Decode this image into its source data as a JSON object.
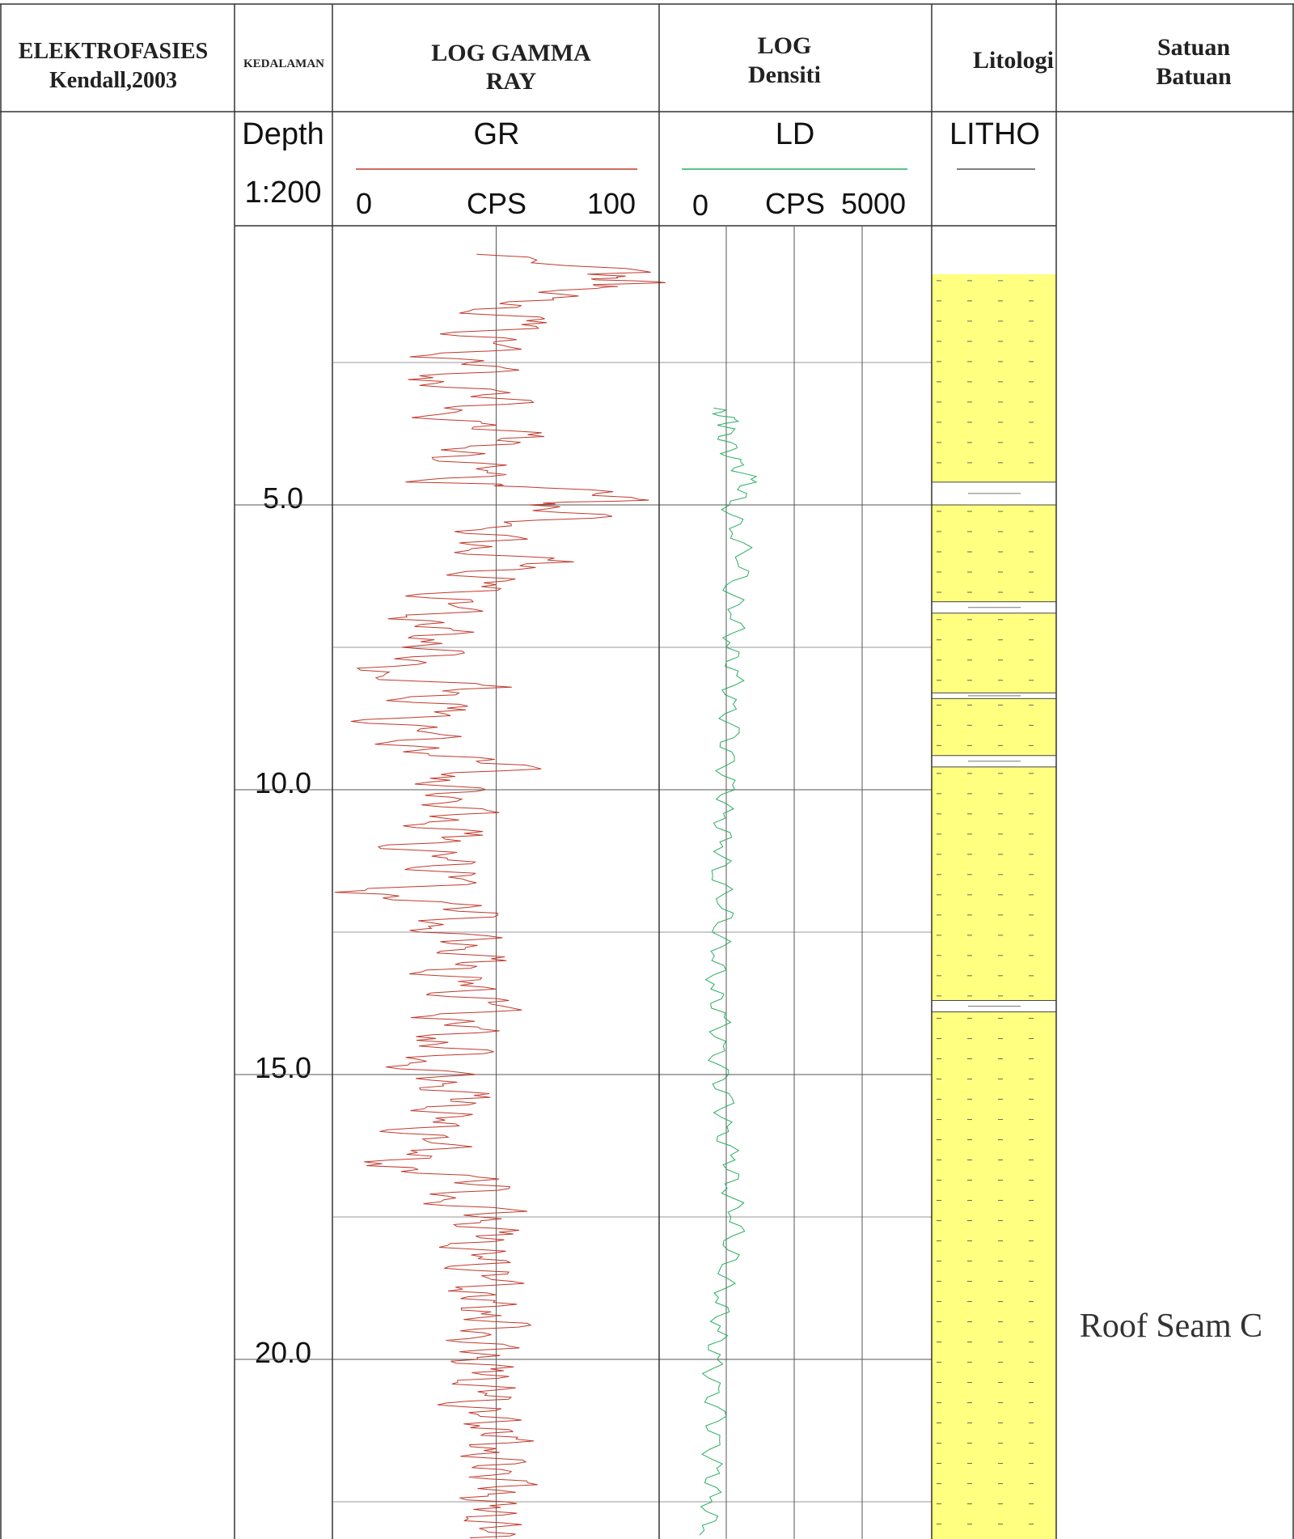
{
  "headers": {
    "electrofacies": [
      "ELEKTROFASIES",
      "Kendall,2003"
    ],
    "depth": "KEDALAMAN",
    "gamma": [
      "LOG GAMMA",
      "RAY"
    ],
    "density": [
      "LOG",
      "Densiti"
    ],
    "lithology": "Litologi",
    "unit": [
      "Satuan",
      "Batuan"
    ]
  },
  "subheaders": {
    "depth_label": "Depth",
    "depth_scale": "1:200",
    "gr_name": "GR",
    "gr_unit": "CPS",
    "gr_min": "0",
    "gr_max": "100",
    "ld_name": "LD",
    "ld_unit": "CPS",
    "ld_min": "0",
    "ld_max": "5000",
    "litho_name": "LITHO"
  },
  "unit_label": "Roof Seam C",
  "colors": {
    "gr_curve": "#c0392b",
    "ld_curve": "#27ae60",
    "sandstone_fill": "#ffff80",
    "grid": "#9a9a9a"
  },
  "chart_data": {
    "type": "line",
    "title": "",
    "ylabel": "Depth",
    "depth_range": [
      0.5,
      23.5
    ],
    "depth_ticks": [
      "5.0",
      "10.0",
      "15.0",
      "20.0"
    ],
    "depth_tick_values": [
      5,
      10,
      15,
      20
    ],
    "series": [
      {
        "name": "GR",
        "unit": "CPS",
        "xlim": [
          0,
          100
        ],
        "values": [
          [
            0.6,
            44
          ],
          [
            0.9,
            92
          ],
          [
            1.0,
            80
          ],
          [
            1.1,
            94
          ],
          [
            1.2,
            74
          ],
          [
            1.4,
            64
          ],
          [
            1.6,
            42
          ],
          [
            1.8,
            70
          ],
          [
            2.0,
            40
          ],
          [
            2.2,
            60
          ],
          [
            2.4,
            30
          ],
          [
            2.6,
            56
          ],
          [
            2.8,
            22
          ],
          [
            3.0,
            46
          ],
          [
            3.2,
            54
          ],
          [
            3.4,
            26
          ],
          [
            3.6,
            44
          ],
          [
            3.8,
            62
          ],
          [
            4.0,
            42
          ],
          [
            4.2,
            36
          ],
          [
            4.4,
            55
          ],
          [
            4.6,
            30
          ],
          [
            4.7,
            70
          ],
          [
            4.9,
            96
          ],
          [
            5.0,
            58
          ],
          [
            5.2,
            80
          ],
          [
            5.4,
            40
          ],
          [
            5.6,
            52
          ],
          [
            5.8,
            36
          ],
          [
            6.0,
            72
          ],
          [
            6.2,
            40
          ],
          [
            6.4,
            56
          ],
          [
            6.6,
            30
          ],
          [
            6.8,
            46
          ],
          [
            7.0,
            22
          ],
          [
            7.2,
            38
          ],
          [
            7.4,
            24
          ],
          [
            7.6,
            34
          ],
          [
            7.8,
            18
          ],
          [
            8.0,
            8
          ],
          [
            8.2,
            50
          ],
          [
            8.4,
            20
          ],
          [
            8.6,
            44
          ],
          [
            8.8,
            12
          ],
          [
            9.0,
            38
          ],
          [
            9.2,
            20
          ],
          [
            9.4,
            34
          ],
          [
            9.6,
            62
          ],
          [
            9.8,
            26
          ],
          [
            10.0,
            40
          ],
          [
            10.2,
            30
          ],
          [
            10.4,
            44
          ],
          [
            10.6,
            24
          ],
          [
            10.8,
            46
          ],
          [
            11.0,
            18
          ],
          [
            11.2,
            42
          ],
          [
            11.4,
            30
          ],
          [
            11.6,
            48
          ],
          [
            11.8,
            4
          ],
          [
            12.0,
            36
          ],
          [
            12.2,
            46
          ],
          [
            12.4,
            22
          ],
          [
            12.6,
            44
          ],
          [
            12.8,
            34
          ],
          [
            13.0,
            50
          ],
          [
            13.2,
            28
          ],
          [
            13.4,
            48
          ],
          [
            13.6,
            36
          ],
          [
            13.8,
            60
          ],
          [
            14.0,
            30
          ],
          [
            14.2,
            48
          ],
          [
            14.4,
            24
          ],
          [
            14.6,
            44
          ],
          [
            14.8,
            16
          ],
          [
            15.0,
            36
          ],
          [
            15.2,
            28
          ],
          [
            15.4,
            46
          ],
          [
            15.6,
            30
          ],
          [
            15.8,
            40
          ],
          [
            16.0,
            22
          ],
          [
            16.2,
            38
          ],
          [
            16.4,
            28
          ],
          [
            16.6,
            12
          ],
          [
            16.8,
            42
          ],
          [
            17.0,
            48
          ],
          [
            17.2,
            26
          ],
          [
            17.4,
            52
          ],
          [
            17.6,
            40
          ],
          [
            17.8,
            54
          ],
          [
            18.0,
            38
          ],
          [
            18.2,
            52
          ],
          [
            18.4,
            42
          ],
          [
            18.6,
            56
          ],
          [
            18.8,
            40
          ],
          [
            19.0,
            50
          ],
          [
            19.2,
            42
          ],
          [
            19.4,
            54
          ],
          [
            19.6,
            38
          ],
          [
            19.8,
            50
          ],
          [
            20.0,
            40
          ],
          [
            20.2,
            52
          ],
          [
            20.4,
            42
          ],
          [
            20.6,
            54
          ],
          [
            20.8,
            40
          ],
          [
            21.0,
            52
          ],
          [
            21.2,
            46
          ],
          [
            21.4,
            56
          ],
          [
            21.6,
            42
          ],
          [
            21.8,
            52
          ],
          [
            22.0,
            46
          ],
          [
            22.2,
            56
          ],
          [
            22.4,
            44
          ],
          [
            22.6,
            52
          ],
          [
            22.8,
            46
          ],
          [
            23.0,
            54
          ],
          [
            23.2,
            42
          ],
          [
            23.4,
            50
          ]
        ]
      },
      {
        "name": "LD",
        "unit": "CPS",
        "xlim": [
          0,
          5000
        ],
        "values": [
          [
            3.3,
            1000
          ],
          [
            3.5,
            1300
          ],
          [
            3.7,
            1200
          ],
          [
            4.0,
            1250
          ],
          [
            4.3,
            1400
          ],
          [
            4.6,
            1700
          ],
          [
            5.0,
            1300
          ],
          [
            5.5,
            1450
          ],
          [
            6.0,
            1600
          ],
          [
            6.5,
            1350
          ],
          [
            7.0,
            1450
          ],
          [
            7.5,
            1300
          ],
          [
            8.0,
            1400
          ],
          [
            8.5,
            1250
          ],
          [
            9.0,
            1300
          ],
          [
            9.5,
            1200
          ],
          [
            10.0,
            1250
          ],
          [
            10.5,
            1150
          ],
          [
            11.0,
            1200
          ],
          [
            11.5,
            1100
          ],
          [
            12.0,
            1250
          ],
          [
            12.5,
            1150
          ],
          [
            13.0,
            1100
          ],
          [
            13.5,
            1000
          ],
          [
            14.0,
            1150
          ],
          [
            14.5,
            1050
          ],
          [
            15.0,
            1100
          ],
          [
            15.5,
            1200
          ],
          [
            16.0,
            1150
          ],
          [
            16.5,
            1350
          ],
          [
            17.0,
            1300
          ],
          [
            17.5,
            1450
          ],
          [
            18.0,
            1350
          ],
          [
            18.5,
            1250
          ],
          [
            19.0,
            1150
          ],
          [
            19.5,
            1100
          ],
          [
            20.0,
            1000
          ],
          [
            20.5,
            950
          ],
          [
            21.0,
            1050
          ],
          [
            21.5,
            950
          ],
          [
            22.0,
            1000
          ],
          [
            22.5,
            950
          ],
          [
            23.0,
            900
          ],
          [
            23.5,
            1000
          ]
        ]
      }
    ],
    "lithology_sandstone": [
      [
        0.95,
        4.6
      ],
      [
        5.0,
        6.7
      ],
      [
        6.9,
        8.3
      ],
      [
        8.4,
        9.4
      ],
      [
        9.6,
        13.7
      ],
      [
        13.9,
        23.5
      ]
    ]
  }
}
